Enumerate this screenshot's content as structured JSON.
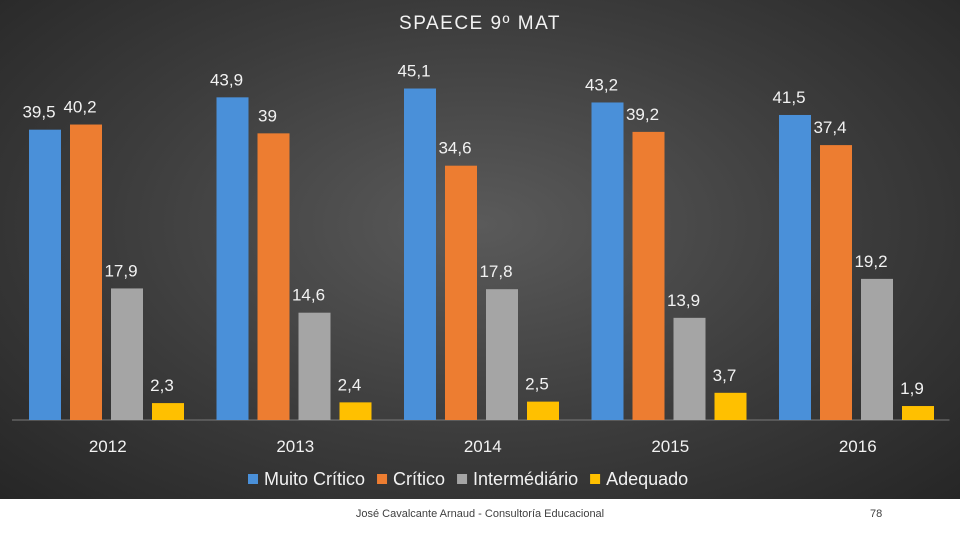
{
  "chart_data": {
    "type": "bar",
    "title": "SPAECE 9º MAT",
    "categories": [
      "2012",
      "2013",
      "2014",
      "2015",
      "2016"
    ],
    "series": [
      {
        "name": "Muito Crítico",
        "color": "#4a90d9",
        "values": [
          39.5,
          43.9,
          45.1,
          43.2,
          41.5
        ],
        "labels": [
          "39,5",
          "43,9",
          "45,1",
          "43,2",
          "41,5"
        ]
      },
      {
        "name": "Crítico",
        "color": "#ed7d31",
        "values": [
          40.2,
          39,
          34.6,
          39.2,
          37.4
        ],
        "labels": [
          "40,2",
          "39",
          "34,6",
          "39,2",
          "37,4"
        ]
      },
      {
        "name": "Intermédiário",
        "color": "#a5a5a5",
        "values": [
          17.9,
          14.6,
          17.8,
          13.9,
          19.2
        ],
        "labels": [
          "17,9",
          "14,6",
          "17,8",
          "13,9",
          "19,2"
        ]
      },
      {
        "name": "Adequado",
        "color": "#ffc000",
        "values": [
          2.3,
          2.4,
          2.5,
          3.7,
          1.9
        ],
        "labels": [
          "2,3",
          "2,4",
          "2,5",
          "3,7",
          "1,9"
        ]
      }
    ],
    "ylim": [
      0,
      50
    ],
    "grid": false,
    "legend": "bottom",
    "xlabel": "",
    "ylabel": ""
  },
  "footer": {
    "text": "José Cavalcante Arnaud - Consultoría Educacional",
    "page_number": "78"
  }
}
